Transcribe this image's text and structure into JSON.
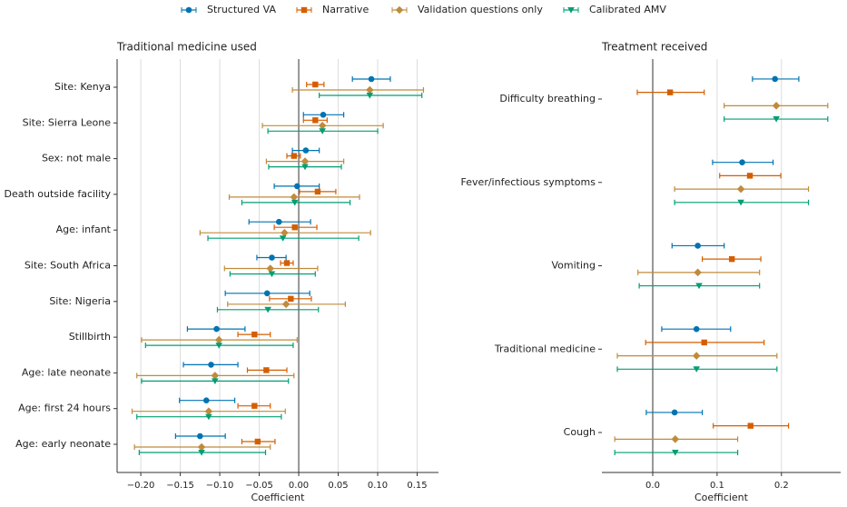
{
  "chart_data": [
    {
      "type": "forest",
      "title": "Traditional medicine used",
      "xlabel": "Coefficient",
      "categories": [
        "Site: Kenya",
        "Site: Sierra Leone",
        "Sex: not male",
        "Death outside facility",
        "Age: infant",
        "Site: South Africa",
        "Site: Nigeria",
        "Stillbirth",
        "Age: late neonate",
        "Age: first 24 hours",
        "Age: early neonate"
      ],
      "xlim": [
        -0.23,
        0.177
      ],
      "xticks": [
        {
          "value": -0.2,
          "label": "−0.20"
        },
        {
          "value": -0.15,
          "label": "−0.15"
        },
        {
          "value": -0.1,
          "label": "−0.10"
        },
        {
          "value": -0.05,
          "label": "−0.05"
        },
        {
          "value": 0,
          "label": "0.00"
        },
        0.05,
        {
          "value": 0.1,
          "label": "0.10"
        },
        0.15
      ],
      "grid": true,
      "series": [
        {
          "name": "Structured VA",
          "color": "#0173b2",
          "marker": "circle",
          "values": [
            0.092,
            0.031,
            0.009,
            -0.002,
            -0.025,
            -0.034,
            -0.04,
            -0.104,
            -0.111,
            -0.117,
            -0.125
          ],
          "lower": [
            0.068,
            0.006,
            -0.008,
            -0.031,
            -0.063,
            -0.053,
            -0.093,
            -0.141,
            -0.146,
            -0.151,
            -0.156
          ],
          "upper": [
            0.116,
            0.057,
            0.026,
            0.026,
            0.015,
            -0.016,
            0.014,
            -0.068,
            -0.077,
            -0.081,
            -0.093
          ]
        },
        {
          "name": "Narrative",
          "color": "#d55e00",
          "marker": "square",
          "values": [
            0.021,
            0.021,
            -0.006,
            0.024,
            -0.005,
            -0.015,
            -0.01,
            -0.056,
            -0.041,
            -0.056,
            -0.052
          ],
          "lower": [
            0.01,
            0.006,
            -0.015,
            0.001,
            -0.031,
            -0.023,
            -0.037,
            -0.077,
            -0.065,
            -0.077,
            -0.072
          ],
          "upper": [
            0.032,
            0.036,
            0.002,
            0.047,
            0.023,
            -0.007,
            0.016,
            -0.036,
            -0.015,
            -0.036,
            -0.03
          ]
        },
        {
          "name": "Validation questions only",
          "color": "#c08b3c",
          "marker": "diamond",
          "values": [
            0.09,
            0.03,
            0.008,
            -0.006,
            -0.018,
            -0.036,
            -0.016,
            -0.101,
            -0.106,
            -0.114,
            -0.123
          ],
          "lower": [
            -0.008,
            -0.046,
            -0.041,
            -0.088,
            -0.125,
            -0.094,
            -0.09,
            -0.199,
            -0.205,
            -0.211,
            -0.208
          ],
          "upper": [
            0.158,
            0.107,
            0.057,
            0.077,
            0.091,
            0.024,
            0.059,
            -0.002,
            -0.006,
            -0.017,
            -0.036
          ]
        },
        {
          "name": "Calibrated AMV",
          "color": "#029e73",
          "marker": "triangle",
          "values": [
            0.09,
            0.03,
            0.008,
            -0.005,
            -0.02,
            -0.034,
            -0.039,
            -0.101,
            -0.106,
            -0.114,
            -0.123
          ],
          "lower": [
            0.026,
            -0.039,
            -0.038,
            -0.072,
            -0.115,
            -0.087,
            -0.103,
            -0.194,
            -0.199,
            -0.205,
            -0.202
          ],
          "upper": [
            0.156,
            0.1,
            0.054,
            0.065,
            0.076,
            0.021,
            0.025,
            -0.007,
            -0.013,
            -0.022,
            -0.042
          ]
        }
      ]
    },
    {
      "type": "forest",
      "title": "Treatment received",
      "xlabel": "Coefficient",
      "categories": [
        "Difficulty breathing",
        "Fever/infectious symptoms",
        "Vomiting",
        "Traditional medicine",
        "Cough"
      ],
      "xlim": [
        -0.079,
        0.292
      ],
      "xticks": [
        {
          "value": 0,
          "label": "0.0"
        },
        0.1,
        0.2
      ],
      "grid": true,
      "series": [
        {
          "color": "#0173b2",
          "marker": "circle",
          "values": [
            0.19,
            0.139,
            0.07,
            0.068,
            0.034
          ],
          "lower": [
            0.155,
            0.093,
            0.03,
            0.014,
            -0.01
          ],
          "upper": [
            0.227,
            0.187,
            0.111,
            0.121,
            0.077
          ]
        },
        {
          "color": "#d55e00",
          "marker": "square",
          "values": [
            0.027,
            0.151,
            0.123,
            0.08,
            0.152
          ],
          "lower": [
            -0.024,
            0.104,
            0.077,
            -0.011,
            0.094
          ],
          "upper": [
            0.08,
            0.199,
            0.168,
            0.173,
            0.211
          ]
        },
        {
          "color": "#c08b3c",
          "marker": "diamond",
          "values": [
            0.192,
            0.137,
            0.07,
            0.068,
            0.035
          ],
          "lower": [
            0.111,
            0.034,
            -0.023,
            -0.055,
            -0.059
          ],
          "upper": [
            0.272,
            0.242,
            0.166,
            0.193,
            0.132
          ]
        },
        {
          "color": "#029e73",
          "marker": "triangle",
          "values": [
            0.192,
            0.137,
            0.072,
            0.068,
            0.035
          ],
          "lower": [
            0.111,
            0.034,
            -0.021,
            -0.055,
            -0.059
          ],
          "upper": [
            0.272,
            0.242,
            0.166,
            0.193,
            0.132
          ]
        }
      ]
    }
  ]
}
